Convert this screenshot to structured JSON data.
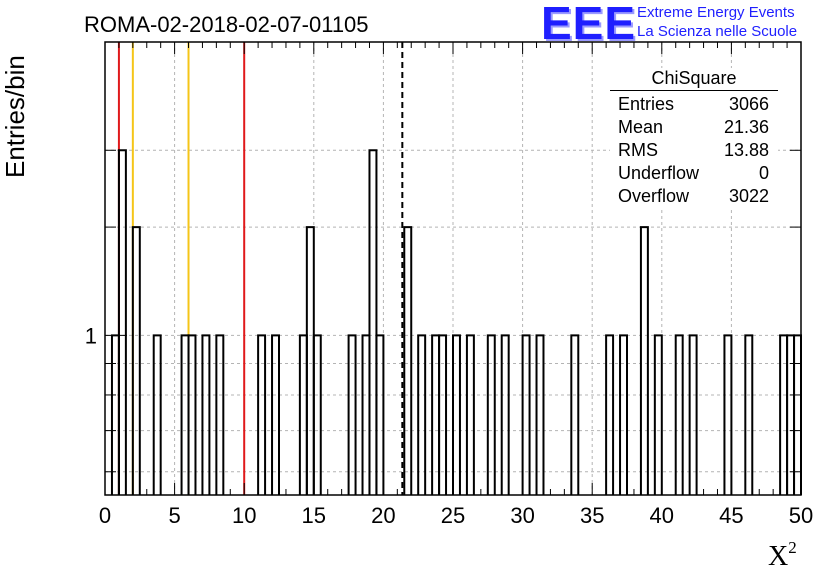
{
  "title": "ROMA-02-2018-02-07-01105",
  "logo": {
    "mark": "EEE",
    "line1": "Extreme Energy Events",
    "line2": "La Scienza nelle Scuole",
    "color": "#1f1fff"
  },
  "stats_box": {
    "title": "ChiSquare",
    "rows": [
      {
        "label": "Entries",
        "value": "3066"
      },
      {
        "label": "Mean",
        "value": "21.36"
      },
      {
        "label": "RMS",
        "value": "13.88"
      },
      {
        "label": "Underflow",
        "value": "0"
      },
      {
        "label": "Overflow",
        "value": "3022"
      }
    ]
  },
  "chart_data": {
    "type": "histogram",
    "xlabel": "X",
    "xlabel_superscript": "2",
    "ylabel": "Entries/bin",
    "xlim": [
      0,
      50
    ],
    "ylim": [
      0.55,
      3.0
    ],
    "yscale": "log",
    "bin_width": 0.5,
    "grid": true,
    "x_ticks": [
      0,
      5,
      10,
      15,
      20,
      25,
      30,
      35,
      40,
      45,
      50
    ],
    "y_tick_labels": [
      {
        "value": 1,
        "label": "1"
      }
    ],
    "bins": [
      {
        "x": 0.5,
        "count": 1
      },
      {
        "x": 1.0,
        "count": 2
      },
      {
        "x": 2.0,
        "count": 1.5
      },
      {
        "x": 3.5,
        "count": 1
      },
      {
        "x": 5.5,
        "count": 1
      },
      {
        "x": 6.0,
        "count": 1
      },
      {
        "x": 7.0,
        "count": 1
      },
      {
        "x": 8.0,
        "count": 1
      },
      {
        "x": 11.0,
        "count": 1
      },
      {
        "x": 12.0,
        "count": 1
      },
      {
        "x": 14.0,
        "count": 1
      },
      {
        "x": 14.5,
        "count": 1.5
      },
      {
        "x": 15.0,
        "count": 1
      },
      {
        "x": 17.5,
        "count": 1
      },
      {
        "x": 18.5,
        "count": 1
      },
      {
        "x": 19.0,
        "count": 2
      },
      {
        "x": 19.5,
        "count": 1
      },
      {
        "x": 21.5,
        "count": 1.5
      },
      {
        "x": 22.5,
        "count": 1
      },
      {
        "x": 23.5,
        "count": 1
      },
      {
        "x": 24.0,
        "count": 1
      },
      {
        "x": 25.0,
        "count": 1
      },
      {
        "x": 26.0,
        "count": 1
      },
      {
        "x": 27.5,
        "count": 1
      },
      {
        "x": 28.5,
        "count": 1
      },
      {
        "x": 30.0,
        "count": 1
      },
      {
        "x": 31.0,
        "count": 1
      },
      {
        "x": 33.5,
        "count": 1
      },
      {
        "x": 36.0,
        "count": 1
      },
      {
        "x": 37.0,
        "count": 1
      },
      {
        "x": 38.5,
        "count": 1.5
      },
      {
        "x": 39.5,
        "count": 1
      },
      {
        "x": 41.0,
        "count": 1
      },
      {
        "x": 42.0,
        "count": 1
      },
      {
        "x": 44.5,
        "count": 1
      },
      {
        "x": 46.0,
        "count": 1
      },
      {
        "x": 48.5,
        "count": 1
      },
      {
        "x": 49.0,
        "count": 1
      },
      {
        "x": 49.5,
        "count": 1
      }
    ],
    "reference_lines": [
      {
        "x": 1.0,
        "color": "#e0191b",
        "style": "solid"
      },
      {
        "x": 2.0,
        "color": "#f5c518",
        "style": "solid"
      },
      {
        "x": 6.0,
        "color": "#f5c518",
        "style": "solid"
      },
      {
        "x": 10.0,
        "color": "#e0191b",
        "style": "solid"
      },
      {
        "x": 21.36,
        "color": "#000000",
        "style": "dashed"
      }
    ]
  }
}
